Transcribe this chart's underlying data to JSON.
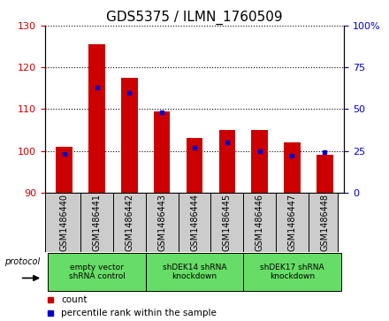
{
  "title": "GDS5375 / ILMN_1760509",
  "samples": [
    "GSM1486440",
    "GSM1486441",
    "GSM1486442",
    "GSM1486443",
    "GSM1486444",
    "GSM1486445",
    "GSM1486446",
    "GSM1486447",
    "GSM1486448"
  ],
  "counts": [
    101,
    125.5,
    117.5,
    109.5,
    103,
    105,
    105,
    102,
    99
  ],
  "percentile_ranks": [
    23,
    63,
    60,
    48,
    27,
    30,
    25,
    22,
    24
  ],
  "ylim_left": [
    90,
    130
  ],
  "ylim_right": [
    0,
    100
  ],
  "yticks_left": [
    90,
    100,
    110,
    120,
    130
  ],
  "yticks_right": [
    0,
    25,
    50,
    75,
    100
  ],
  "bar_color": "#cc0000",
  "percentile_color": "#0000cc",
  "bar_bottom": 90,
  "groups": [
    {
      "label": "empty vector\nshRNA control",
      "start": 0,
      "end": 3,
      "color": "#66dd66"
    },
    {
      "label": "shDEK14 shRNA\nknockdown",
      "start": 3,
      "end": 6,
      "color": "#66dd66"
    },
    {
      "label": "shDEK17 shRNA\nknockdown",
      "start": 6,
      "end": 9,
      "color": "#66dd66"
    }
  ],
  "protocol_label": "protocol",
  "legend_count_label": "count",
  "legend_percentile_label": "percentile rank within the sample",
  "bar_width": 0.5,
  "tick_label_fontsize": 7,
  "title_fontsize": 11,
  "axis_label_fontsize": 8,
  "xtick_bg_color": "#cccccc",
  "group_border_color": "#000000"
}
